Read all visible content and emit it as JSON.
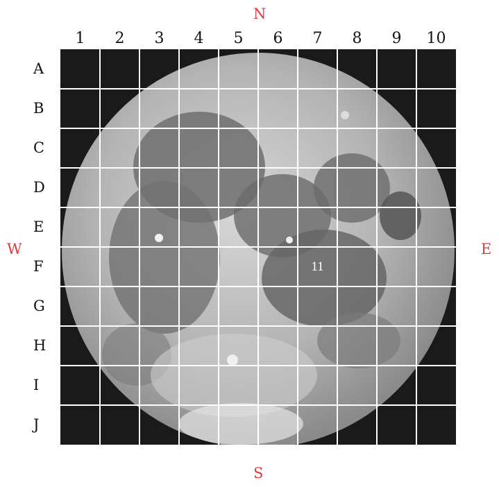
{
  "compass": {
    "north": "N",
    "south": "S",
    "west": "W",
    "east": "E"
  },
  "columns": [
    "1",
    "2",
    "3",
    "4",
    "5",
    "6",
    "7",
    "8",
    "9",
    "10"
  ],
  "rows": [
    "A",
    "B",
    "C",
    "D",
    "E",
    "F",
    "G",
    "H",
    "I",
    "J"
  ],
  "marker": {
    "label": "11",
    "cell_row": "F",
    "cell_col": "7"
  },
  "colors": {
    "compass_text": "#e0393e",
    "grid_lines": "#ffffff",
    "background": "#1a1a1a",
    "label_text": "#111111"
  }
}
